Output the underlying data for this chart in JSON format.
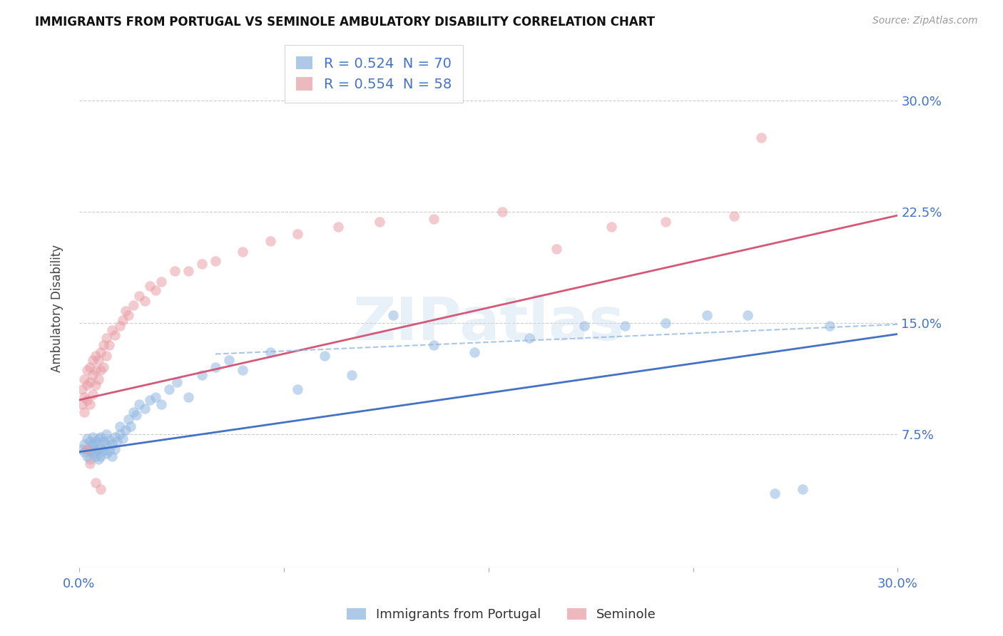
{
  "title": "IMMIGRANTS FROM PORTUGAL VS SEMINOLE AMBULATORY DISABILITY CORRELATION CHART",
  "source": "Source: ZipAtlas.com",
  "ylabel": "Ambulatory Disability",
  "ytick_labels": [
    "7.5%",
    "15.0%",
    "22.5%",
    "30.0%"
  ],
  "ytick_values": [
    0.075,
    0.15,
    0.225,
    0.3
  ],
  "xlim": [
    0.0,
    0.3
  ],
  "ylim": [
    -0.015,
    0.335
  ],
  "legend1_text_r": "R = 0.524",
  "legend1_text_n": "  N = 70",
  "legend2_text_r": "R = 0.554",
  "legend2_text_n": "  N = 58",
  "blue_color": "#92b8e0",
  "pink_color": "#e8a0a8",
  "blue_line_color": "#4472c4",
  "pink_line_color": "#d45878",
  "watermark_text": "ZIPatlas",
  "blue_intercept": 0.063,
  "blue_slope": 0.265,
  "pink_intercept": 0.098,
  "pink_slope": 0.415,
  "dash_intercept": 0.125,
  "dash_slope": 0.08,
  "blue_scatter_x": [
    0.001,
    0.002,
    0.002,
    0.003,
    0.003,
    0.003,
    0.004,
    0.004,
    0.004,
    0.005,
    0.005,
    0.005,
    0.005,
    0.006,
    0.006,
    0.006,
    0.007,
    0.007,
    0.007,
    0.008,
    0.008,
    0.008,
    0.009,
    0.009,
    0.01,
    0.01,
    0.01,
    0.011,
    0.011,
    0.012,
    0.012,
    0.013,
    0.013,
    0.014,
    0.015,
    0.015,
    0.016,
    0.017,
    0.018,
    0.019,
    0.02,
    0.021,
    0.022,
    0.024,
    0.026,
    0.028,
    0.03,
    0.033,
    0.036,
    0.04,
    0.045,
    0.05,
    0.055,
    0.06,
    0.07,
    0.08,
    0.09,
    0.1,
    0.115,
    0.13,
    0.145,
    0.165,
    0.185,
    0.2,
    0.215,
    0.23,
    0.245,
    0.255,
    0.265,
    0.275
  ],
  "blue_scatter_y": [
    0.065,
    0.063,
    0.068,
    0.06,
    0.065,
    0.072,
    0.058,
    0.064,
    0.07,
    0.062,
    0.067,
    0.073,
    0.068,
    0.06,
    0.064,
    0.07,
    0.058,
    0.065,
    0.072,
    0.06,
    0.066,
    0.073,
    0.064,
    0.07,
    0.062,
    0.068,
    0.075,
    0.064,
    0.071,
    0.06,
    0.068,
    0.065,
    0.073,
    0.07,
    0.075,
    0.08,
    0.072,
    0.078,
    0.085,
    0.08,
    0.09,
    0.088,
    0.095,
    0.092,
    0.098,
    0.1,
    0.095,
    0.105,
    0.11,
    0.1,
    0.115,
    0.12,
    0.125,
    0.118,
    0.13,
    0.105,
    0.128,
    0.115,
    0.155,
    0.135,
    0.13,
    0.14,
    0.148,
    0.148,
    0.15,
    0.155,
    0.155,
    0.035,
    0.038,
    0.148
  ],
  "pink_scatter_x": [
    0.001,
    0.001,
    0.002,
    0.002,
    0.002,
    0.003,
    0.003,
    0.003,
    0.004,
    0.004,
    0.004,
    0.005,
    0.005,
    0.005,
    0.006,
    0.006,
    0.006,
    0.007,
    0.007,
    0.008,
    0.008,
    0.009,
    0.009,
    0.01,
    0.01,
    0.011,
    0.012,
    0.013,
    0.015,
    0.016,
    0.017,
    0.018,
    0.02,
    0.022,
    0.024,
    0.026,
    0.028,
    0.03,
    0.035,
    0.04,
    0.045,
    0.05,
    0.06,
    0.07,
    0.08,
    0.095,
    0.11,
    0.13,
    0.155,
    0.175,
    0.195,
    0.215,
    0.24,
    0.003,
    0.004,
    0.006,
    0.008,
    0.25
  ],
  "pink_scatter_y": [
    0.095,
    0.105,
    0.09,
    0.1,
    0.112,
    0.098,
    0.108,
    0.118,
    0.095,
    0.11,
    0.12,
    0.102,
    0.115,
    0.125,
    0.108,
    0.118,
    0.128,
    0.112,
    0.125,
    0.118,
    0.13,
    0.12,
    0.135,
    0.128,
    0.14,
    0.135,
    0.145,
    0.142,
    0.148,
    0.152,
    0.158,
    0.155,
    0.162,
    0.168,
    0.165,
    0.175,
    0.172,
    0.178,
    0.185,
    0.185,
    0.19,
    0.192,
    0.198,
    0.205,
    0.21,
    0.215,
    0.218,
    0.22,
    0.225,
    0.2,
    0.215,
    0.218,
    0.222,
    0.065,
    0.055,
    0.042,
    0.038,
    0.275
  ]
}
